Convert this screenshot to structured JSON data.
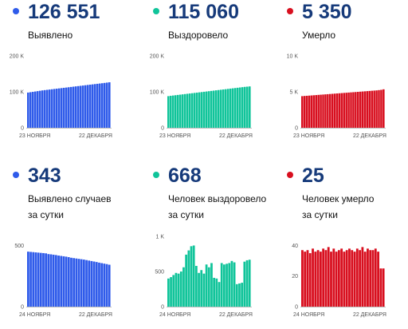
{
  "panels": [
    {
      "id": "cases-total",
      "headline": "126 551",
      "label_lines": [
        "Выявлено"
      ],
      "color": "#2f5bea"
    },
    {
      "id": "recovered-total",
      "headline": "115 060",
      "label_lines": [
        "Выздоровело"
      ],
      "color": "#10c49a"
    },
    {
      "id": "deaths-total",
      "headline": "5 350",
      "label_lines": [
        "Умерло"
      ],
      "color": "#d80f1f"
    },
    {
      "id": "cases-daily",
      "headline": "343",
      "label_lines": [
        "Выявлено случаев",
        "за сутки"
      ],
      "color": "#2f5bea"
    },
    {
      "id": "recovered-daily",
      "headline": "668",
      "label_lines": [
        "Человек выздоровело",
        "за сутки"
      ],
      "color": "#10c49a"
    },
    {
      "id": "deaths-daily",
      "headline": "25",
      "label_lines": [
        "Человек умерло",
        "за сутки"
      ],
      "color": "#d80f1f"
    }
  ],
  "chart_data": [
    {
      "type": "bar",
      "x_start_label": "23 НОЯБРЯ",
      "x_end_label": "22 ДЕКАБРЯ",
      "yticks": [
        0,
        100000,
        200000
      ],
      "ytick_labels": [
        "0",
        "100 K",
        "200 K"
      ],
      "ylim": [
        0,
        200000
      ],
      "color": "#2f5bea",
      "values": [
        98000,
        99000,
        100000,
        101000,
        102000,
        103000,
        104000,
        104800,
        105600,
        106400,
        107200,
        108000,
        108800,
        109600,
        110400,
        111200,
        112000,
        112800,
        113600,
        114400,
        115200,
        116000,
        116800,
        117600,
        118400,
        119200,
        120000,
        120800,
        121600,
        122400,
        123200,
        124000,
        124800,
        125700,
        126551
      ]
    },
    {
      "type": "bar",
      "x_start_label": "23 НОЯБРЯ",
      "x_end_label": "22 ДЕКАБРЯ",
      "yticks": [
        0,
        100000,
        200000
      ],
      "ytick_labels": [
        "0",
        "100 K",
        "200 K"
      ],
      "ylim": [
        0,
        200000
      ],
      "color": "#10c49a",
      "values": [
        88000,
        89000,
        89800,
        90600,
        91400,
        92200,
        93000,
        93800,
        94600,
        95400,
        96200,
        97000,
        97800,
        98600,
        99400,
        100200,
        101000,
        101800,
        102600,
        103400,
        104200,
        105000,
        105800,
        106600,
        107400,
        108200,
        109000,
        109800,
        110600,
        111400,
        112200,
        113000,
        113800,
        114400,
        115060
      ]
    },
    {
      "type": "bar",
      "x_start_label": "23 НОЯБРЯ",
      "x_end_label": "22 ДЕКАБРЯ",
      "yticks": [
        0,
        5000,
        10000
      ],
      "ytick_labels": [
        "0",
        "5 K",
        "10 K"
      ],
      "ylim": [
        0,
        10000
      ],
      "color": "#d80f1f",
      "values": [
        4400,
        4425,
        4450,
        4475,
        4500,
        4525,
        4550,
        4575,
        4600,
        4625,
        4650,
        4675,
        4700,
        4725,
        4750,
        4775,
        4800,
        4825,
        4850,
        4875,
        4900,
        4925,
        4950,
        4975,
        5000,
        5025,
        5050,
        5075,
        5100,
        5125,
        5150,
        5175,
        5200,
        5240,
        5280,
        5350
      ]
    },
    {
      "type": "bar",
      "x_start_label": "24 НОЯБРЯ",
      "x_end_label": "22 ДЕКАБРЯ",
      "yticks": [
        0,
        500
      ],
      "ytick_labels": [
        "0",
        "500"
      ],
      "ylim": [
        0,
        575
      ],
      "color": "#2f5bea",
      "values": [
        450,
        448,
        446,
        444,
        442,
        440,
        438,
        436,
        430,
        428,
        425,
        422,
        418,
        415,
        412,
        409,
        405,
        400,
        397,
        394,
        391,
        388,
        385,
        381,
        377,
        373,
        369,
        365,
        360,
        356,
        352,
        348,
        343
      ]
    },
    {
      "type": "bar",
      "x_start_label": "24 НОЯБРЯ",
      "x_end_label": "22 ДЕКАБРЯ",
      "yticks": [
        0,
        500,
        1000
      ],
      "ytick_labels": [
        "0",
        "500",
        "1 K"
      ],
      "ylim": [
        0,
        1000
      ],
      "color": "#10c49a",
      "values": [
        400,
        420,
        450,
        480,
        470,
        500,
        560,
        740,
        800,
        860,
        870,
        580,
        480,
        520,
        470,
        600,
        560,
        620,
        410,
        400,
        350,
        620,
        600,
        610,
        620,
        650,
        630,
        320,
        330,
        340,
        640,
        660,
        668
      ]
    },
    {
      "type": "bar",
      "x_start_label": "24 НОЯБРЯ",
      "x_end_label": "22 ДЕКАБРЯ",
      "yticks": [
        0,
        20,
        40
      ],
      "ytick_labels": [
        "0",
        "20",
        "40"
      ],
      "ylim": [
        0,
        46
      ],
      "color": "#d80f1f",
      "values": [
        37,
        36,
        37,
        35,
        38,
        36,
        37,
        36,
        38,
        37,
        39,
        36,
        38,
        36,
        37,
        38,
        36,
        37,
        38,
        37,
        36,
        38,
        37,
        39,
        36,
        38,
        37,
        37,
        38,
        36,
        25,
        25
      ]
    }
  ]
}
